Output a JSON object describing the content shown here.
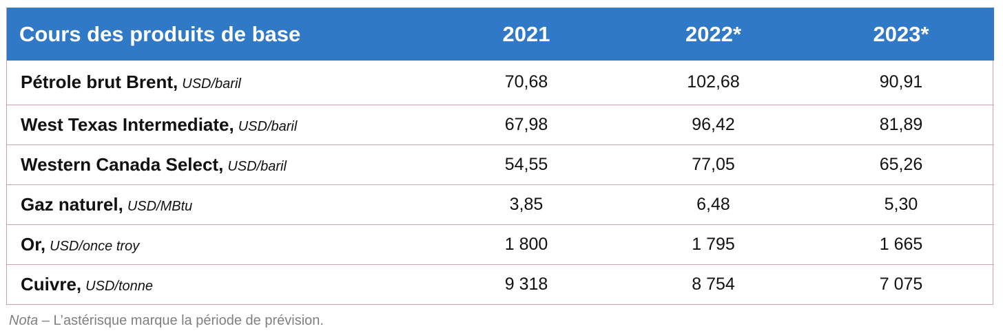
{
  "table": {
    "headers": [
      "Cours des produits de base",
      "2021",
      "2022*",
      "2023*"
    ],
    "rows": [
      {
        "name": "Pétrole brut Brent,",
        "unit": "USD/baril",
        "values": [
          "70,68",
          "102,68",
          "90,91"
        ]
      },
      {
        "name": "West Texas Intermediate,",
        "unit": "USD/baril",
        "values": [
          "67,98",
          "96,42",
          "81,89"
        ]
      },
      {
        "name": "Western Canada Select,",
        "unit": "USD/baril",
        "values": [
          "54,55",
          "77,05",
          "65,26"
        ]
      },
      {
        "name": "Gaz naturel,",
        "unit": "USD/MBtu",
        "values": [
          "3,85",
          "6,48",
          "5,30"
        ]
      },
      {
        "name": "Or,",
        "unit": "USD/once troy",
        "values": [
          "1 800",
          "1 795",
          "1 665"
        ]
      },
      {
        "name": "Cuivre,",
        "unit": "USD/tonne",
        "values": [
          "9 318",
          "8 754",
          "7 075"
        ]
      }
    ]
  },
  "note": {
    "label": "Nota",
    "text": " – L’astérisque marque la période de prévision."
  },
  "colors": {
    "header_bg": "#3079c6",
    "header_text": "#ffffff",
    "row_border": "#c9a3b3",
    "note_text": "#7f7f7f"
  }
}
